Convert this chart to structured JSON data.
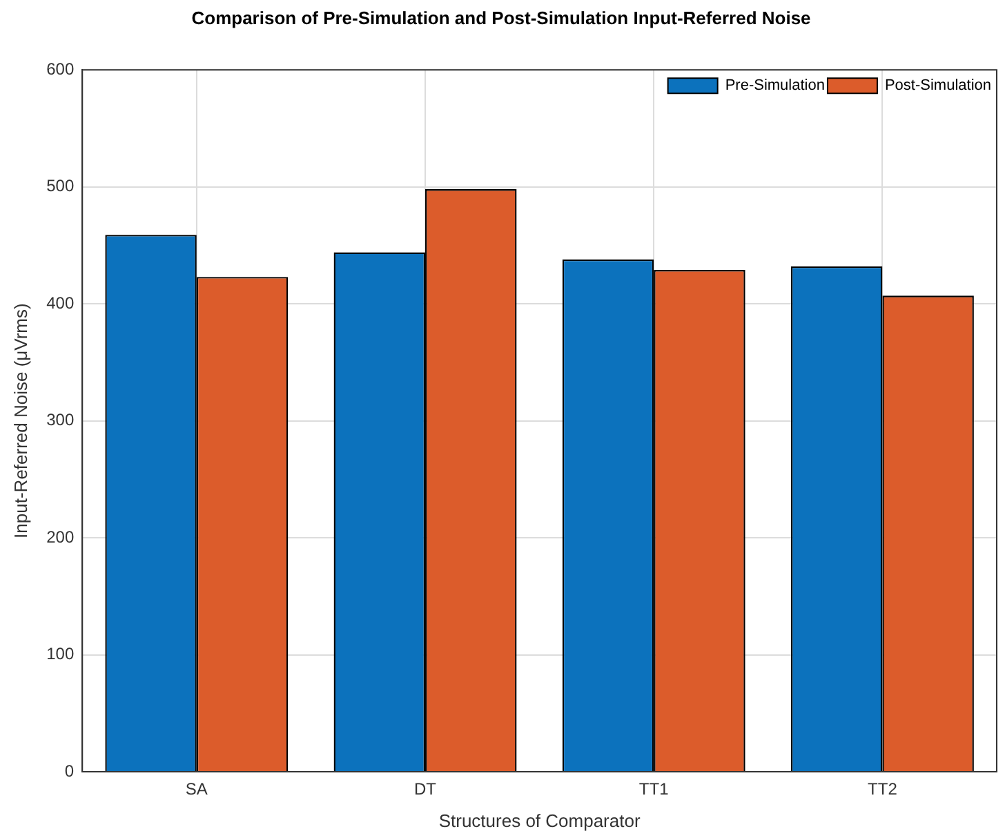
{
  "chart_data": {
    "type": "bar",
    "title": "Comparison of Pre-Simulation and Post-Simulation Input-Referred Noise",
    "xlabel": "Structures of Comparator",
    "ylabel": "Input-Referred Noise (μVrms)",
    "categories": [
      "SA",
      "DT",
      "TT1",
      "TT2"
    ],
    "series": [
      {
        "name": "Pre-Simulation",
        "color": "#0c72bd",
        "values": [
          459,
          444,
          438,
          432
        ]
      },
      {
        "name": "Post-Simulation",
        "color": "#dc5c2b",
        "values": [
          423,
          498,
          429,
          407
        ]
      }
    ],
    "ylim": [
      0,
      600
    ],
    "yticks": [
      0,
      100,
      200,
      300,
      400,
      500,
      600
    ],
    "grid": true,
    "legend": "top right"
  }
}
